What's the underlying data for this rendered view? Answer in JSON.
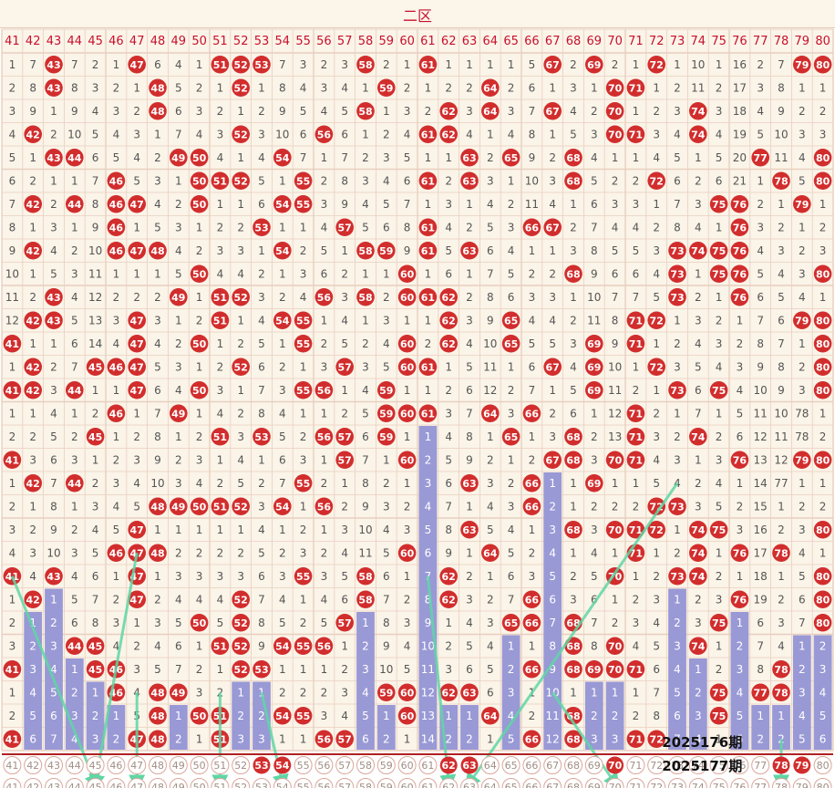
{
  "title": "二区",
  "periods": {
    "current": "2025176期",
    "next": "2025177期"
  },
  "colors": {
    "ball": "#d22d2d",
    "bar": "#9999d6",
    "arrow": "#5fd6a4",
    "grid": "#e8cfc0",
    "bg": "#fbf4e8"
  },
  "chart_data": {
    "type": "table",
    "columns": [
      41,
      42,
      43,
      44,
      45,
      46,
      47,
      48,
      49,
      50,
      51,
      52,
      53,
      54,
      55,
      56,
      57,
      58,
      59,
      60,
      61,
      62,
      63,
      64,
      65,
      66,
      67,
      68,
      69,
      70,
      71,
      72,
      73,
      74,
      75,
      76,
      77,
      78,
      79,
      80
    ],
    "rows": [
      [
        1,
        7,
        43,
        7,
        2,
        1,
        47,
        6,
        4,
        1,
        51,
        52,
        53,
        7,
        3,
        2,
        3,
        58,
        2,
        1,
        61,
        1,
        1,
        1,
        1,
        5,
        67,
        2,
        69,
        2,
        1,
        72,
        1,
        10,
        1,
        16,
        2,
        7,
        79,
        80
      ],
      [
        2,
        8,
        43,
        8,
        3,
        2,
        1,
        48,
        5,
        2,
        1,
        52,
        1,
        8,
        4,
        3,
        4,
        1,
        59,
        2,
        1,
        2,
        2,
        64,
        2,
        6,
        1,
        3,
        1,
        70,
        71,
        1,
        2,
        11,
        2,
        17,
        3,
        8,
        1,
        1
      ],
      [
        3,
        9,
        1,
        9,
        4,
        3,
        2,
        48,
        6,
        3,
        2,
        1,
        2,
        9,
        5,
        4,
        5,
        58,
        1,
        3,
        2,
        62,
        3,
        64,
        3,
        7,
        67,
        4,
        2,
        70,
        1,
        2,
        3,
        74,
        3,
        18,
        4,
        9,
        2,
        2
      ],
      [
        4,
        42,
        2,
        10,
        5,
        4,
        3,
        1,
        7,
        4,
        3,
        52,
        3,
        10,
        6,
        56,
        6,
        1,
        2,
        4,
        61,
        62,
        4,
        1,
        4,
        8,
        1,
        5,
        3,
        70,
        71,
        3,
        4,
        74,
        4,
        19,
        5,
        10,
        3,
        3
      ],
      [
        5,
        1,
        43,
        44,
        6,
        5,
        4,
        2,
        49,
        50,
        4,
        1,
        4,
        54,
        7,
        1,
        7,
        2,
        3,
        5,
        1,
        1,
        63,
        2,
        65,
        9,
        2,
        68,
        4,
        1,
        1,
        4,
        5,
        1,
        5,
        20,
        77,
        11,
        4,
        80
      ],
      [
        6,
        2,
        1,
        1,
        7,
        46,
        5,
        3,
        1,
        50,
        51,
        52,
        5,
        1,
        55,
        2,
        8,
        3,
        4,
        6,
        61,
        2,
        63,
        3,
        1,
        10,
        3,
        68,
        5,
        2,
        2,
        72,
        6,
        2,
        6,
        21,
        1,
        78,
        5,
        80
      ],
      [
        7,
        42,
        2,
        44,
        8,
        46,
        47,
        4,
        2,
        50,
        1,
        1,
        6,
        54,
        55,
        3,
        9,
        4,
        5,
        7,
        1,
        3,
        1,
        4,
        2,
        11,
        4,
        1,
        6,
        3,
        3,
        1,
        7,
        3,
        75,
        76,
        2,
        1,
        79,
        1
      ],
      [
        8,
        1,
        3,
        1,
        9,
        46,
        1,
        5,
        3,
        1,
        2,
        2,
        53,
        1,
        1,
        4,
        57,
        5,
        6,
        8,
        61,
        4,
        2,
        5,
        3,
        66,
        67,
        2,
        7,
        4,
        4,
        2,
        8,
        4,
        1,
        76,
        3,
        2,
        1,
        2
      ],
      [
        9,
        42,
        4,
        2,
        10,
        46,
        47,
        48,
        4,
        2,
        3,
        3,
        1,
        54,
        2,
        5,
        1,
        58,
        59,
        9,
        61,
        5,
        63,
        6,
        4,
        1,
        1,
        3,
        8,
        5,
        5,
        3,
        73,
        74,
        75,
        76,
        4,
        3,
        2,
        3
      ],
      [
        10,
        1,
        5,
        3,
        11,
        1,
        1,
        1,
        5,
        50,
        4,
        4,
        2,
        1,
        3,
        6,
        2,
        1,
        1,
        60,
        1,
        6,
        1,
        7,
        5,
        2,
        2,
        68,
        9,
        6,
        6,
        4,
        73,
        1,
        75,
        76,
        5,
        4,
        3,
        80
      ],
      [
        11,
        2,
        43,
        4,
        12,
        2,
        2,
        2,
        49,
        1,
        51,
        52,
        3,
        2,
        4,
        56,
        3,
        58,
        2,
        60,
        61,
        62,
        2,
        8,
        6,
        3,
        3,
        1,
        10,
        7,
        7,
        5,
        73,
        2,
        1,
        76,
        6,
        5,
        4,
        1
      ],
      [
        12,
        42,
        43,
        5,
        13,
        3,
        47,
        3,
        1,
        2,
        51,
        1,
        4,
        54,
        55,
        1,
        4,
        1,
        3,
        1,
        1,
        62,
        3,
        9,
        65,
        4,
        4,
        2,
        11,
        8,
        71,
        72,
        1,
        3,
        2,
        1,
        7,
        6,
        79,
        80
      ],
      [
        41,
        1,
        1,
        6,
        14,
        4,
        47,
        4,
        2,
        50,
        1,
        2,
        5,
        1,
        55,
        2,
        5,
        2,
        4,
        60,
        2,
        62,
        4,
        10,
        65,
        5,
        5,
        3,
        69,
        9,
        71,
        1,
        2,
        4,
        3,
        2,
        8,
        7,
        1,
        80
      ],
      [
        1,
        42,
        2,
        7,
        45,
        46,
        47,
        5,
        3,
        1,
        2,
        52,
        6,
        2,
        1,
        3,
        57,
        3,
        5,
        60,
        61,
        1,
        5,
        11,
        1,
        6,
        67,
        4,
        69,
        10,
        1,
        72,
        3,
        5,
        4,
        3,
        9,
        8,
        2,
        80
      ],
      [
        41,
        42,
        3,
        44,
        1,
        1,
        47,
        6,
        4,
        50,
        3,
        1,
        7,
        3,
        55,
        56,
        1,
        4,
        59,
        1,
        1,
        2,
        6,
        12,
        2,
        7,
        1,
        5,
        69,
        11,
        2,
        1,
        73,
        6,
        75,
        4,
        10,
        9,
        3,
        80
      ],
      [
        1,
        1,
        4,
        1,
        2,
        46,
        1,
        7,
        49,
        1,
        4,
        2,
        8,
        4,
        1,
        1,
        2,
        5,
        59,
        60,
        61,
        3,
        7,
        64,
        3,
        66,
        2,
        6,
        1,
        12,
        71,
        2,
        1,
        7,
        1,
        5,
        11,
        10,
        78,
        1
      ],
      [
        2,
        2,
        5,
        2,
        45,
        1,
        2,
        8,
        1,
        2,
        51,
        3,
        53,
        5,
        2,
        56,
        57,
        6,
        59,
        1,
        1,
        4,
        8,
        1,
        65,
        1,
        3,
        68,
        2,
        13,
        71,
        3,
        2,
        74,
        2,
        6,
        12,
        11,
        78,
        2
      ],
      [
        41,
        3,
        6,
        3,
        1,
        2,
        3,
        9,
        2,
        3,
        1,
        4,
        1,
        6,
        3,
        1,
        57,
        7,
        1,
        60,
        2,
        5,
        9,
        2,
        1,
        2,
        67,
        68,
        3,
        70,
        71,
        4,
        3,
        1,
        3,
        76,
        13,
        12,
        79,
        80
      ],
      [
        1,
        42,
        7,
        44,
        2,
        3,
        4,
        10,
        3,
        4,
        2,
        5,
        2,
        7,
        55,
        2,
        1,
        8,
        2,
        1,
        3,
        6,
        63,
        3,
        2,
        66,
        1,
        1,
        69,
        1,
        1,
        5,
        4,
        2,
        4,
        1,
        14,
        77,
        1,
        1
      ],
      [
        2,
        1,
        8,
        1,
        3,
        4,
        5,
        48,
        49,
        50,
        51,
        52,
        3,
        54,
        1,
        56,
        2,
        9,
        3,
        2,
        4,
        7,
        1,
        4,
        3,
        66,
        2,
        1,
        2,
        2,
        2,
        72,
        73,
        3,
        5,
        2,
        15,
        1,
        2,
        2
      ],
      [
        3,
        2,
        9,
        2,
        4,
        5,
        47,
        1,
        1,
        1,
        1,
        1,
        4,
        1,
        2,
        1,
        3,
        10,
        4,
        3,
        5,
        8,
        63,
        5,
        4,
        1,
        3,
        68,
        3,
        70,
        71,
        72,
        1,
        74,
        75,
        3,
        16,
        2,
        3,
        80
      ],
      [
        4,
        3,
        10,
        3,
        5,
        46,
        47,
        48,
        2,
        2,
        2,
        2,
        5,
        2,
        3,
        2,
        4,
        11,
        5,
        60,
        6,
        9,
        1,
        64,
        5,
        2,
        4,
        1,
        4,
        1,
        71,
        1,
        2,
        74,
        1,
        76,
        17,
        78,
        4,
        1
      ],
      [
        41,
        4,
        43,
        4,
        6,
        1,
        47,
        1,
        3,
        3,
        3,
        3,
        6,
        3,
        55,
        3,
        5,
        58,
        6,
        1,
        7,
        62,
        2,
        1,
        6,
        3,
        5,
        2,
        5,
        70,
        1,
        2,
        73,
        74,
        2,
        1,
        18,
        1,
        5,
        80
      ],
      [
        1,
        42,
        1,
        5,
        7,
        2,
        47,
        2,
        4,
        4,
        4,
        52,
        7,
        4,
        1,
        4,
        6,
        58,
        7,
        2,
        8,
        62,
        3,
        2,
        7,
        66,
        6,
        3,
        6,
        1,
        2,
        3,
        1,
        2,
        3,
        76,
        19,
        2,
        6,
        80
      ],
      [
        2,
        1,
        2,
        6,
        8,
        3,
        1,
        3,
        5,
        50,
        5,
        52,
        8,
        5,
        2,
        5,
        57,
        1,
        8,
        3,
        9,
        1,
        4,
        3,
        65,
        66,
        7,
        68,
        7,
        2,
        3,
        4,
        2,
        3,
        75,
        1,
        6,
        3,
        7,
        80
      ],
      [
        3,
        2,
        3,
        44,
        45,
        4,
        2,
        4,
        6,
        1,
        51,
        52,
        9,
        54,
        55,
        56,
        1,
        2,
        9,
        4,
        10,
        2,
        5,
        4,
        1,
        1,
        8,
        68,
        8,
        70,
        4,
        5,
        3,
        74,
        1,
        2,
        7,
        4,
        1,
        2
      ],
      [
        41,
        3,
        4,
        1,
        45,
        46,
        3,
        5,
        7,
        2,
        1,
        52,
        53,
        1,
        1,
        1,
        2,
        3,
        10,
        5,
        11,
        3,
        6,
        5,
        2,
        66,
        9,
        68,
        69,
        70,
        71,
        6,
        4,
        1,
        2,
        3,
        8,
        78,
        2,
        3
      ],
      [
        1,
        4,
        5,
        2,
        1,
        46,
        4,
        48,
        49,
        3,
        2,
        1,
        1,
        2,
        2,
        2,
        3,
        4,
        59,
        60,
        12,
        62,
        63,
        6,
        3,
        1,
        10,
        1,
        1,
        1,
        1,
        7,
        5,
        2,
        75,
        4,
        77,
        78,
        3,
        4
      ],
      [
        2,
        5,
        6,
        3,
        2,
        1,
        5,
        48,
        1,
        50,
        51,
        2,
        2,
        54,
        55,
        3,
        4,
        5,
        1,
        60,
        13,
        1,
        1,
        64,
        4,
        2,
        11,
        68,
        2,
        2,
        2,
        8,
        6,
        3,
        75,
        5,
        1,
        1,
        4,
        5
      ],
      [
        41,
        6,
        7,
        4,
        3,
        2,
        47,
        48,
        2,
        1,
        51,
        3,
        3,
        1,
        1,
        56,
        57,
        6,
        2,
        1,
        14,
        2,
        2,
        1,
        5,
        66,
        12,
        68,
        3,
        3,
        71,
        72,
        7,
        4,
        1,
        6,
        2,
        2,
        5,
        6
      ]
    ],
    "candidate_row": [
      41,
      42,
      43,
      44,
      45,
      46,
      47,
      48,
      49,
      50,
      51,
      52,
      53,
      54,
      55,
      56,
      57,
      58,
      59,
      60,
      61,
      62,
      63,
      64,
      65,
      66,
      67,
      68,
      69,
      70,
      71,
      72,
      73,
      74,
      75,
      76,
      77,
      78,
      79,
      80
    ],
    "candidate_hits": [
      53,
      54,
      62,
      63,
      70,
      78,
      79
    ]
  }
}
